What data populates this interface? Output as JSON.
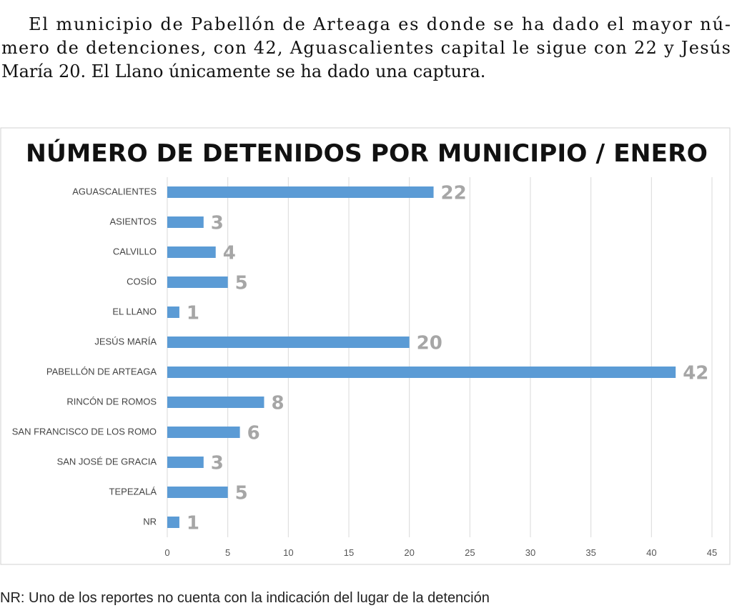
{
  "paragraph": [
    "El municipio de Pabellón de Arteaga es donde se ha dado el mayor nú-",
    "mero de detenciones, con 42, Aguascalientes capital le sigue con 22 y Jesús",
    "María 20. El Llano únicamente se ha dado una captura."
  ],
  "chart_data": {
    "type": "barh",
    "title": "NÚMERO DE DETENIDOS POR MUNICIPIO / ENERO",
    "categories": [
      "AGUASCALIENTES",
      "ASIENTOS",
      "CALVILLO",
      "COSÍO",
      "EL LLANO",
      "JESÚS MARÍA",
      "PABELLÓN DE ARTEAGA",
      "RINCÓN DE ROMOS",
      "SAN FRANCISCO DE LOS ROMO",
      "SAN JOSÉ DE GRACIA",
      "TEPEZALÁ",
      "NR"
    ],
    "values": [
      22,
      3,
      4,
      5,
      1,
      20,
      42,
      8,
      6,
      3,
      5,
      1
    ],
    "color": "#5b9bd5",
    "xlim": [
      0,
      45
    ],
    "xticks": [
      0,
      5,
      10,
      15,
      20,
      25,
      30,
      35,
      40,
      45
    ],
    "grid": true
  },
  "note": "NR: Uno de los reportes no cuenta con la indicación del lugar de la detención"
}
